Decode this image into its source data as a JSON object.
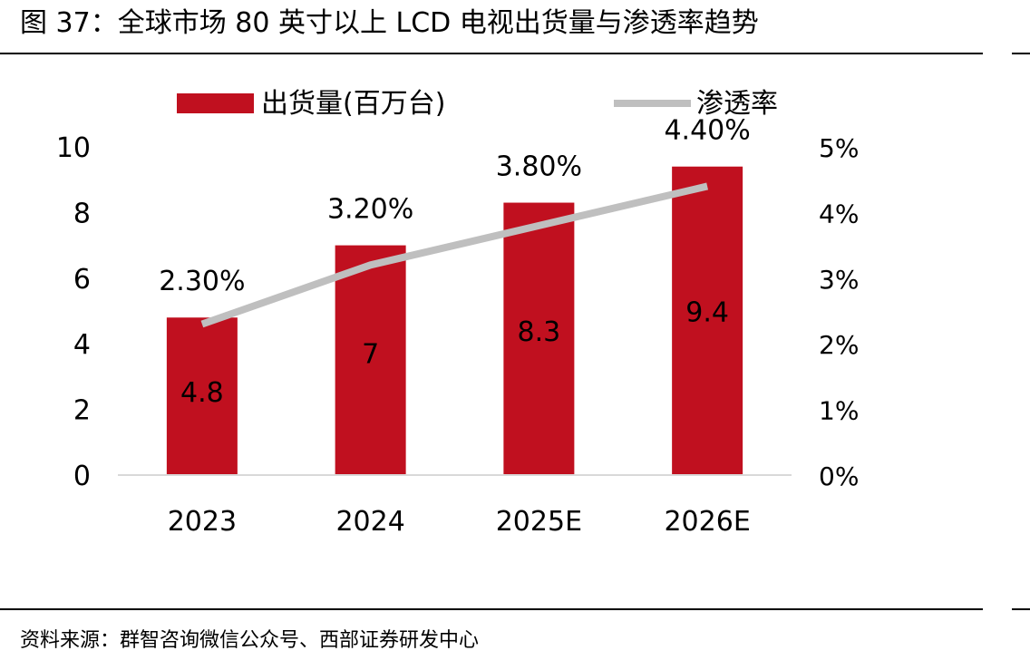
{
  "figure": {
    "title": "图 37：全球市场 80 英寸以上 LCD 电视出货量与渗透率趋势",
    "source": "资料来源：群智咨询微信公众号、西部证券研发中心"
  },
  "colors": {
    "bar": "#c0101f",
    "line": "#bfbfbf",
    "axis": "#d9d9d9",
    "text": "#000000"
  },
  "chart_data": {
    "type": "bar",
    "categories": [
      "2023",
      "2024",
      "2025E",
      "2026E"
    ],
    "series": [
      {
        "name": "出货量(百万台)",
        "type": "bar",
        "axis": "left",
        "values": [
          4.8,
          7,
          8.3,
          9.4
        ],
        "labels": [
          "4.8",
          "7",
          "8.3",
          "9.4"
        ]
      },
      {
        "name": "渗透率",
        "type": "line",
        "axis": "right",
        "values": [
          2.3,
          3.2,
          3.8,
          4.4
        ],
        "labels": [
          "2.30%",
          "3.20%",
          "3.80%",
          "4.40%"
        ]
      }
    ],
    "y_left": {
      "ylim": [
        0,
        10
      ],
      "ticks": [
        "0",
        "2",
        "4",
        "6",
        "8",
        "10"
      ]
    },
    "y_right": {
      "ylim": [
        0,
        5
      ],
      "ticks": [
        "0%",
        "1%",
        "2%",
        "3%",
        "4%",
        "5%"
      ]
    },
    "legend": "top",
    "grid": false
  }
}
